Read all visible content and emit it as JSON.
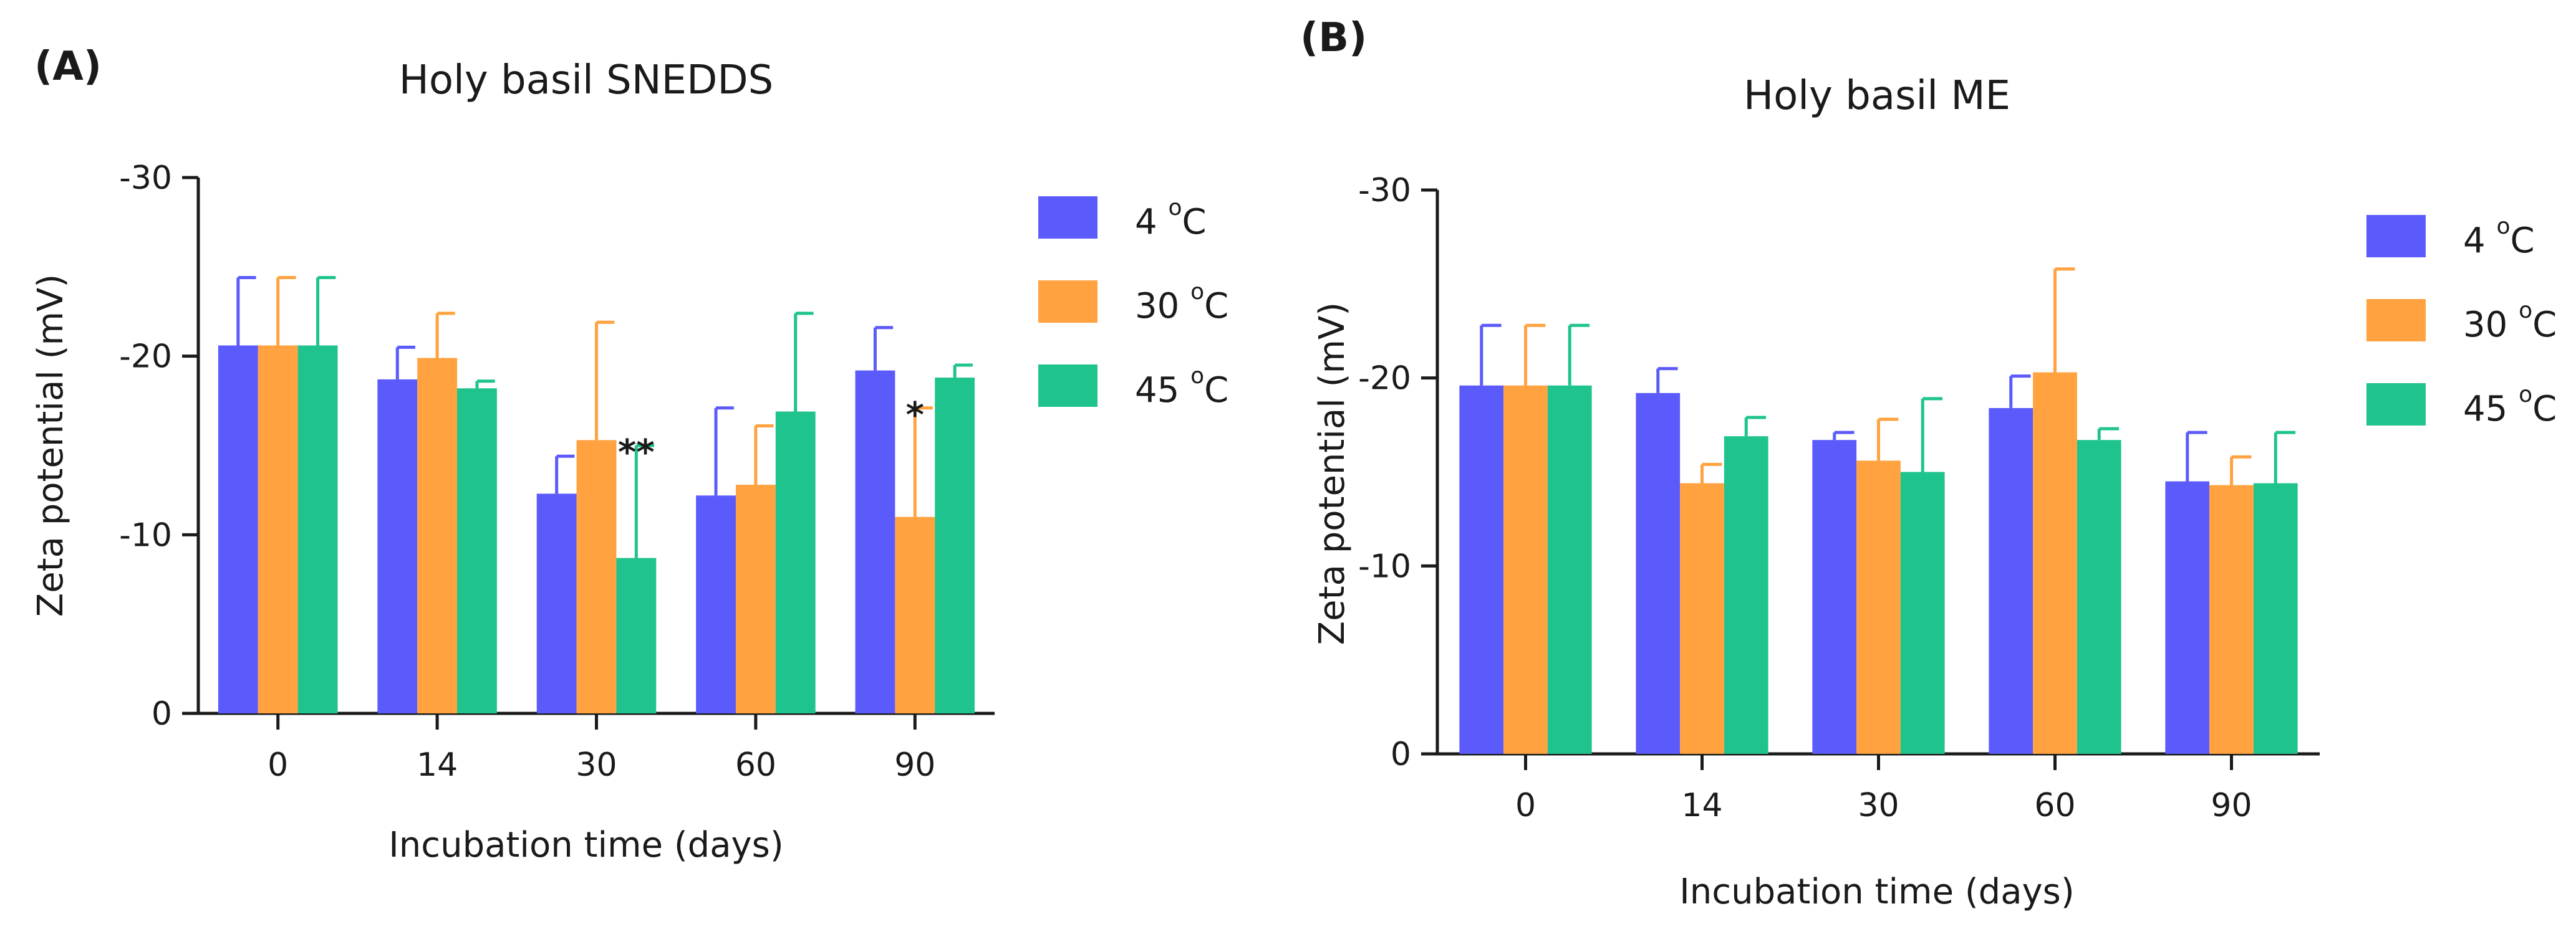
{
  "chart_data": [
    {
      "type": "bar",
      "panel_label": "(A)",
      "title": "Holy basil SNEDDS",
      "xlabel": "Incubation time (days)",
      "ylabel": "Zeta potential (mV)",
      "ylim": [
        0,
        -30
      ],
      "yticks": [
        0,
        -10,
        -20,
        -30
      ],
      "ytick_labels": [
        "0",
        "-10",
        "-20",
        "-30"
      ],
      "categories": [
        "0",
        "14",
        "30",
        "60",
        "90"
      ],
      "series": [
        {
          "name": "4",
          "unit": "C",
          "color": "#5b5bfb",
          "values": [
            -20.6,
            -18.7,
            -12.3,
            -12.2,
            -19.2
          ],
          "errors": [
            3.8,
            1.8,
            2.1,
            4.9,
            2.4
          ]
        },
        {
          "name": "30",
          "unit": "C",
          "color": "#ffa23f",
          "values": [
            -20.6,
            -19.9,
            -15.3,
            -12.8,
            -11.0
          ],
          "errors": [
            3.8,
            2.5,
            6.6,
            3.3,
            6.1
          ]
        },
        {
          "name": "45",
          "unit": "C",
          "color": "#1fc38d",
          "values": [
            -20.6,
            -18.2,
            -8.7,
            -16.9,
            -18.8
          ],
          "errors": [
            3.8,
            0.4,
            6.3,
            5.5,
            0.7
          ]
        }
      ],
      "annotations": [
        {
          "text": "**",
          "category": "30",
          "series": "45"
        },
        {
          "text": "*",
          "category": "90",
          "series": "30"
        }
      ],
      "legend": "right"
    },
    {
      "type": "bar",
      "panel_label": "(B)",
      "title": "Holy basil ME",
      "xlabel": "Incubation time (days)",
      "ylabel": "Zeta potential (mV)",
      "ylim": [
        0,
        -30
      ],
      "yticks": [
        0,
        -10,
        -20,
        -30
      ],
      "ytick_labels": [
        "0",
        "-10",
        "-20",
        "-30"
      ],
      "categories": [
        "0",
        "14",
        "30",
        "60",
        "90"
      ],
      "series": [
        {
          "name": "4",
          "unit": "C",
          "color": "#5b5bfb",
          "values": [
            -19.6,
            -19.2,
            -16.7,
            -18.4,
            -14.5
          ],
          "errors": [
            3.2,
            1.3,
            0.4,
            1.7,
            2.6
          ]
        },
        {
          "name": "30",
          "unit": "C",
          "color": "#ffa23f",
          "values": [
            -19.6,
            -14.4,
            -15.6,
            -20.3,
            -14.3
          ],
          "errors": [
            3.2,
            1.0,
            2.2,
            5.5,
            1.5
          ]
        },
        {
          "name": "45",
          "unit": "C",
          "color": "#1fc38d",
          "values": [
            -19.6,
            -16.9,
            -15.0,
            -16.7,
            -14.4
          ],
          "errors": [
            3.2,
            1.0,
            3.9,
            0.6,
            2.7
          ]
        }
      ],
      "annotations": [],
      "legend": "right"
    }
  ]
}
